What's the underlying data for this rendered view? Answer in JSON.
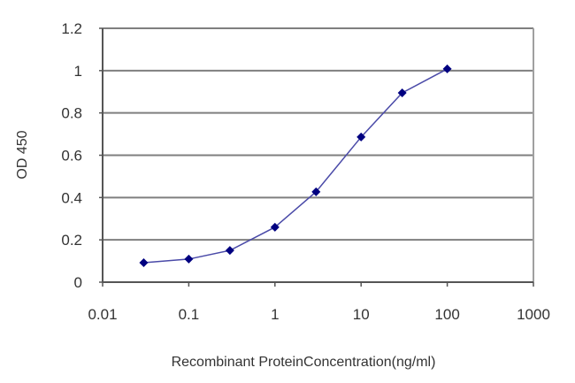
{
  "chart_data": {
    "type": "line",
    "title": "",
    "xlabel": "Recombinant ProteinConcentration(ng/ml)",
    "ylabel": "OD 450",
    "x_scale": "log",
    "xlim": [
      0.01,
      1000
    ],
    "ylim": [
      0,
      1.2
    ],
    "x_ticks": [
      "0.01",
      "0.1",
      "1",
      "10",
      "100",
      "1000"
    ],
    "y_ticks": [
      "0",
      "0.2",
      "0.4",
      "0.6",
      "0.8",
      "1",
      "1.2"
    ],
    "grid": {
      "horizontal": true,
      "vertical": false
    },
    "legend": null,
    "series": [
      {
        "name": "OD 450",
        "color": "#000080",
        "line_color": "#4a4aa8",
        "marker": "diamond",
        "x": [
          0.03,
          0.1,
          0.3,
          1,
          3,
          10,
          30,
          100
        ],
        "values": [
          0.092,
          0.109,
          0.15,
          0.26,
          0.427,
          0.686,
          0.895,
          1.008
        ]
      }
    ]
  },
  "colors": {
    "gridline": "#7f7f7f",
    "axis": "#555555",
    "plot_border": "#a0a0a0",
    "marker": "#000080",
    "line": "#4a4aa8"
  }
}
